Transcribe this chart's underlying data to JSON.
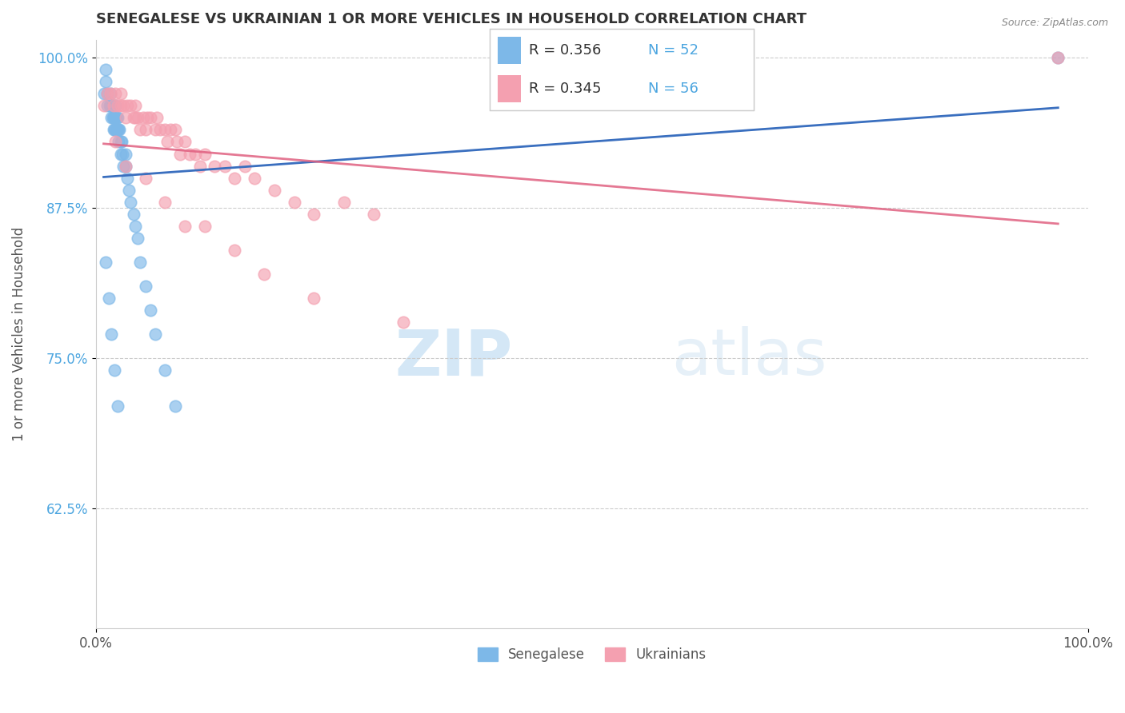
{
  "title": "SENEGALESE VS UKRAINIAN 1 OR MORE VEHICLES IN HOUSEHOLD CORRELATION CHART",
  "source": "Source: ZipAtlas.com",
  "ylabel": "1 or more Vehicles in Household",
  "legend_senegalese": "Senegalese",
  "legend_ukrainians": "Ukrainians",
  "R_senegalese": 0.356,
  "N_senegalese": 52,
  "R_ukrainians": 0.345,
  "N_ukrainians": 56,
  "xlim": [
    0.0,
    1.0
  ],
  "ylim_min": 0.525,
  "ylim_max": 1.015,
  "ytick_positions": [
    0.625,
    0.75,
    0.875,
    1.0
  ],
  "ytick_labels": [
    "62.5%",
    "75.0%",
    "87.5%",
    "100.0%"
  ],
  "color_senegalese": "#7db8e8",
  "color_ukrainians": "#f4a0b0",
  "line_color_senegalese": "#3a6fbf",
  "line_color_ukrainians": "#e06080",
  "watermark_zip": "ZIP",
  "watermark_atlas": "atlas",
  "background_color": "#ffffff",
  "senegalese_x": [
    0.008,
    0.01,
    0.01,
    0.012,
    0.012,
    0.014,
    0.015,
    0.015,
    0.016,
    0.016,
    0.017,
    0.017,
    0.018,
    0.018,
    0.018,
    0.019,
    0.019,
    0.02,
    0.02,
    0.02,
    0.021,
    0.021,
    0.022,
    0.022,
    0.023,
    0.023,
    0.024,
    0.025,
    0.025,
    0.026,
    0.027,
    0.028,
    0.03,
    0.03,
    0.032,
    0.033,
    0.035,
    0.038,
    0.04,
    0.042,
    0.045,
    0.05,
    0.055,
    0.06,
    0.07,
    0.08,
    0.01,
    0.013,
    0.016,
    0.019,
    0.022,
    0.97
  ],
  "senegalese_y": [
    0.97,
    0.99,
    0.98,
    0.97,
    0.96,
    0.96,
    0.97,
    0.96,
    0.96,
    0.95,
    0.96,
    0.95,
    0.96,
    0.95,
    0.94,
    0.95,
    0.94,
    0.96,
    0.95,
    0.94,
    0.95,
    0.94,
    0.95,
    0.94,
    0.94,
    0.93,
    0.94,
    0.93,
    0.92,
    0.93,
    0.92,
    0.91,
    0.92,
    0.91,
    0.9,
    0.89,
    0.88,
    0.87,
    0.86,
    0.85,
    0.83,
    0.81,
    0.79,
    0.77,
    0.74,
    0.71,
    0.83,
    0.8,
    0.77,
    0.74,
    0.71,
    1.0
  ],
  "ukrainians_x": [
    0.008,
    0.012,
    0.015,
    0.018,
    0.02,
    0.022,
    0.025,
    0.025,
    0.028,
    0.03,
    0.032,
    0.035,
    0.038,
    0.04,
    0.04,
    0.042,
    0.045,
    0.048,
    0.05,
    0.052,
    0.055,
    0.06,
    0.062,
    0.065,
    0.07,
    0.072,
    0.075,
    0.08,
    0.082,
    0.085,
    0.09,
    0.095,
    0.1,
    0.105,
    0.11,
    0.12,
    0.13,
    0.14,
    0.15,
    0.16,
    0.18,
    0.2,
    0.22,
    0.25,
    0.28,
    0.02,
    0.03,
    0.05,
    0.07,
    0.09,
    0.11,
    0.14,
    0.17,
    0.22,
    0.31,
    0.97
  ],
  "ukrainians_y": [
    0.96,
    0.97,
    0.97,
    0.96,
    0.97,
    0.96,
    0.97,
    0.96,
    0.96,
    0.95,
    0.96,
    0.96,
    0.95,
    0.96,
    0.95,
    0.95,
    0.94,
    0.95,
    0.94,
    0.95,
    0.95,
    0.94,
    0.95,
    0.94,
    0.94,
    0.93,
    0.94,
    0.94,
    0.93,
    0.92,
    0.93,
    0.92,
    0.92,
    0.91,
    0.92,
    0.91,
    0.91,
    0.9,
    0.91,
    0.9,
    0.89,
    0.88,
    0.87,
    0.88,
    0.87,
    0.93,
    0.91,
    0.9,
    0.88,
    0.86,
    0.86,
    0.84,
    0.82,
    0.8,
    0.78,
    1.0
  ]
}
